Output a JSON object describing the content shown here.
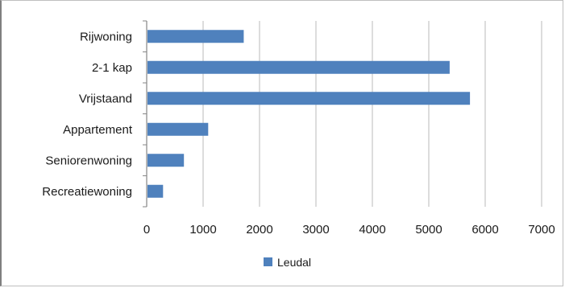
{
  "chart_data": {
    "type": "bar",
    "orientation": "horizontal",
    "categories": [
      "Rijwoning",
      "2-1 kap",
      "Vrijstaand",
      "Appartement",
      "Seniorenwoning",
      "Recreatiewoning"
    ],
    "series": [
      {
        "name": "Leudal",
        "values": [
          1720,
          5370,
          5730,
          1090,
          660,
          290
        ],
        "color": "#4f81bd"
      }
    ],
    "xlim": [
      0,
      7000
    ],
    "xticks": [
      "0",
      "1000",
      "2000",
      "3000",
      "4000",
      "5000",
      "6000",
      "7000"
    ],
    "grid": true,
    "legend": "bottom"
  }
}
